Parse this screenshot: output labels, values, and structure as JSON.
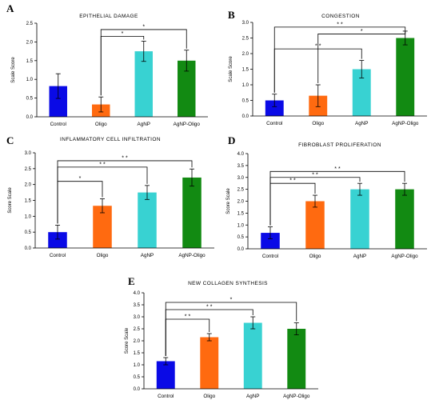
{
  "colors": {
    "Control": "#0a0ae6",
    "Oligo": "#ff6a10",
    "AgNP": "#38d2d2",
    "AgNP-Oligo": "#128a12",
    "axis": "#000000"
  },
  "chart_data": [
    {
      "type": "bar",
      "letter": "A",
      "title": "EPITHELIAL DAMAGE",
      "ylabel": "Scale Score",
      "categories": [
        "Control",
        "Oligo",
        "AgNP",
        "AgNP-Oligo"
      ],
      "values": [
        0.82,
        0.33,
        1.75,
        1.5
      ],
      "errors": [
        0.33,
        0.2,
        0.27,
        0.28
      ],
      "ylim": [
        0,
        2.5
      ],
      "yticks": [
        "0.0",
        "0.5",
        "1.0",
        "1.5",
        "2.0",
        "2.5"
      ],
      "significance": [
        {
          "from": "Oligo",
          "to": "AgNP",
          "y": 2.15,
          "label": "*"
        },
        {
          "from": "Oligo",
          "to": "AgNP-Oligo",
          "y": 2.33,
          "label": "*"
        }
      ]
    },
    {
      "type": "bar",
      "letter": "B",
      "title": "CONGESTION",
      "ylabel": "Scale Score",
      "categories": [
        "Control",
        "Oligo",
        "AgNP",
        "AgNP-Oligo"
      ],
      "values": [
        0.5,
        0.65,
        1.5,
        2.5
      ],
      "errors": [
        0.2,
        0.35,
        0.28,
        0.22
      ],
      "ylim": [
        0,
        3.0
      ],
      "yticks": [
        "0.0",
        "0.5",
        "1.0",
        "1.5",
        "2.0",
        "2.5",
        "3.0"
      ],
      "significance": [
        {
          "from": "Control",
          "to": "AgNP",
          "y": 2.15,
          "label": "* *"
        },
        {
          "from": "Control",
          "to": "AgNP-Oligo",
          "y": 2.85,
          "label": "* *"
        },
        {
          "from": "Oligo",
          "to": "AgNP-Oligo",
          "y": 2.63,
          "label": "*"
        }
      ]
    },
    {
      "type": "bar",
      "letter": "C",
      "title": "INFLAMMATORY CELL INFILTRATION",
      "ylabel": "Score Scale",
      "categories": [
        "Control",
        "Oligo",
        "AgNP",
        "AgNP-Oligo"
      ],
      "values": [
        0.5,
        1.33,
        1.75,
        2.22
      ],
      "errors": [
        0.22,
        0.22,
        0.22,
        0.27
      ],
      "ylim": [
        0,
        3.0
      ],
      "yticks": [
        "0.0",
        "0.5",
        "1.0",
        "1.5",
        "2.0",
        "2.5",
        "3.0"
      ],
      "significance": [
        {
          "from": "Control",
          "to": "Oligo",
          "y": 2.1,
          "label": "*"
        },
        {
          "from": "Control",
          "to": "AgNP",
          "y": 2.55,
          "label": "* *"
        },
        {
          "from": "Control",
          "to": "AgNP-Oligo",
          "y": 2.75,
          "label": "* *"
        }
      ]
    },
    {
      "type": "bar",
      "letter": "D",
      "title": "FIBROBLAST PROLIFERATION",
      "ylabel": "Score Scale",
      "categories": [
        "Control",
        "Oligo",
        "AgNP",
        "AgNP-Oligo"
      ],
      "values": [
        0.67,
        2.0,
        2.5,
        2.5
      ],
      "errors": [
        0.25,
        0.25,
        0.25,
        0.25
      ],
      "ylim": [
        0,
        4.0
      ],
      "yticks": [
        "0.0",
        "0.5",
        "1.0",
        "1.5",
        "2.0",
        "2.5",
        "3.0",
        "3.5",
        "4.0"
      ],
      "significance": [
        {
          "from": "Control",
          "to": "Oligo",
          "y": 2.75,
          "label": "* *"
        },
        {
          "from": "Control",
          "to": "AgNP",
          "y": 3.0,
          "label": "* *"
        },
        {
          "from": "Control",
          "to": "AgNP-Oligo",
          "y": 3.25,
          "label": "* *"
        }
      ]
    },
    {
      "type": "bar",
      "letter": "E",
      "title": "NEW COLLAGEN SYNTHESIS",
      "ylabel": "Score Scale",
      "categories": [
        "Control",
        "Oligo",
        "AgNP",
        "AgNP-Oligo"
      ],
      "values": [
        1.15,
        2.15,
        2.75,
        2.5
      ],
      "errors": [
        0.15,
        0.15,
        0.25,
        0.25
      ],
      "ylim": [
        0,
        4.0
      ],
      "yticks": [
        "0.0",
        "0.5",
        "1.0",
        "1.5",
        "2.0",
        "2.5",
        "3.0",
        "3.5",
        "4.0"
      ],
      "significance": [
        {
          "from": "Control",
          "to": "Oligo",
          "y": 2.9,
          "label": "* *"
        },
        {
          "from": "Control",
          "to": "AgNP",
          "y": 3.3,
          "label": "* *"
        },
        {
          "from": "Control",
          "to": "AgNP-Oligo",
          "y": 3.6,
          "label": "*"
        }
      ]
    }
  ]
}
